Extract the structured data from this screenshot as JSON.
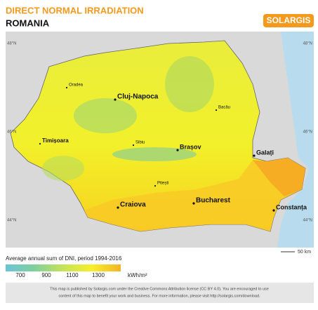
{
  "header": {
    "title": "DIRECT NORMAL IRRADIATION",
    "country": "ROMANIA",
    "logo": "SOLARGIS"
  },
  "map": {
    "latitudes": [
      "48°N",
      "46°N",
      "44°N"
    ],
    "cities": [
      "Oradea",
      "Cluj-Napoca",
      "Bacău",
      "Timișoara",
      "Sibiu",
      "Brașov",
      "Galați",
      "Pitești",
      "Craiova",
      "Bucharest",
      "Constanța"
    ],
    "scale": "50 km"
  },
  "legend": {
    "title": "Average annual sum of DNI, period 1994-2016",
    "ticks": [
      700,
      900,
      1100,
      1300
    ],
    "unit": "kWh/m²"
  },
  "footer": [
    "This map is published by Solargis.com under the Creative Commons Attribution license (CC BY 4.0). You are encouraged to use",
    "content of this map to benefit your work and business. For more information, please visit http://solargis.com/download."
  ]
}
